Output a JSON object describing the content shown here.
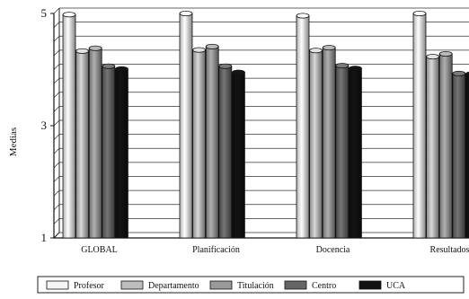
{
  "chart_data": {
    "type": "bar",
    "title": "",
    "xlabel": "",
    "ylabel": "Medias",
    "ylim": [
      1,
      5
    ],
    "yticks": [
      1,
      3,
      5
    ],
    "grid": true,
    "style": "3d-cylinder",
    "categories": [
      "GLOBAL",
      "Planificación",
      "Docencia",
      "Resultados"
    ],
    "series": [
      {
        "name": "Profesor",
        "color": "#f4f4f4",
        "values": [
          4.98,
          5.0,
          4.96,
          5.0
        ]
      },
      {
        "name": "Departamento",
        "color": "#bdbdbd",
        "values": [
          4.33,
          4.35,
          4.34,
          4.23
        ]
      },
      {
        "name": "Titulación",
        "color": "#999999",
        "values": [
          4.38,
          4.41,
          4.39,
          4.28
        ]
      },
      {
        "name": "Centro",
        "color": "#666666",
        "values": [
          4.06,
          4.06,
          4.07,
          3.93
        ]
      },
      {
        "name": "UCA",
        "color": "#111111",
        "values": [
          4.01,
          3.95,
          4.02,
          3.92
        ]
      }
    ],
    "legend_position": "bottom"
  }
}
